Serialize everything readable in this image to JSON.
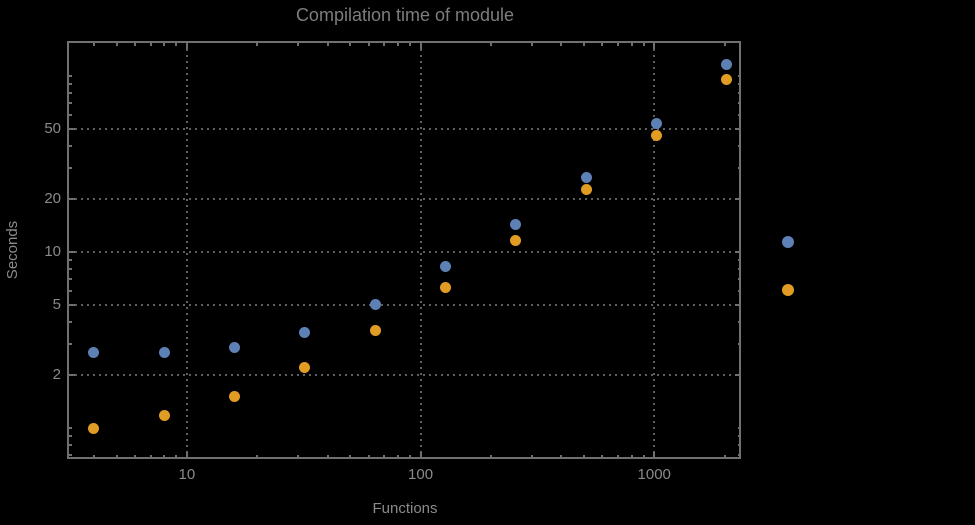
{
  "title": "Compilation time of module",
  "chart_data": {
    "type": "scatter",
    "title": "Compilation time of module",
    "xlabel": "Functions",
    "ylabel": "Seconds",
    "x_scale": "log",
    "y_scale": "log",
    "xlim": [
      3.13,
      2352
    ],
    "ylim": [
      0.68,
      154
    ],
    "grid": "dotted gridlines at labeled major ticks only",
    "legend_position": "outside-right, markers only (no visible labels)",
    "x_major_ticks": [
      10,
      100,
      1000
    ],
    "x_major_tick_labels": [
      "10",
      "100",
      "1000"
    ],
    "y_major_ticks": [
      2,
      5,
      10,
      20,
      50
    ],
    "y_major_tick_labels": [
      "2",
      "5",
      "10",
      "20",
      "50"
    ],
    "x": [
      4,
      8,
      16,
      32,
      64,
      128,
      256,
      512,
      1024,
      2048
    ],
    "series": [
      {
        "name": "blue",
        "color": "#5e81b5",
        "values": [
          2.7,
          2.7,
          2.85,
          3.5,
          5.05,
          8.3,
          14.3,
          26.5,
          54,
          117
        ]
      },
      {
        "name": "orange",
        "color": "#e19c24",
        "values": [
          1.0,
          1.18,
          1.52,
          2.2,
          3.6,
          6.3,
          11.7,
          22.7,
          46,
          96
        ]
      }
    ]
  },
  "legend": {
    "markers": [
      {
        "name": "blue",
        "color": "#5e81b5"
      },
      {
        "name": "orange",
        "color": "#e19c24"
      }
    ]
  },
  "colors": {
    "background": "#000000",
    "frame": "#707070",
    "gridline": "#5f5f5f",
    "tick_label_text": "#8a8a8a",
    "title_text": "#7d7d7d",
    "series_blue": "#5e81b5",
    "series_orange": "#e19c24"
  }
}
